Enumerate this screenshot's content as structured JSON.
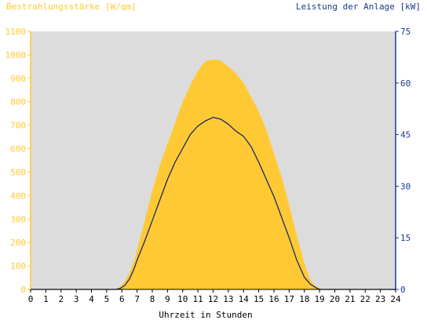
{
  "chart_data": {
    "type": "area",
    "left_axis_title": "Bestrahlungsstärke [W/qm]",
    "right_axis_title": "Leistung der Anlage [kW]",
    "xlabel": "Uhrzeit in Stunden",
    "x_ticks": [
      "0",
      "1",
      "2",
      "3",
      "4",
      "5",
      "6",
      "7",
      "8",
      "9",
      "10",
      "11",
      "12",
      "13",
      "14",
      "15",
      "16",
      "17",
      "18",
      "19",
      "20",
      "21",
      "22",
      "23",
      "24"
    ],
    "y_left_ticks": [
      "0",
      "100",
      "200",
      "300",
      "400",
      "500",
      "600",
      "700",
      "800",
      "900",
      "1000",
      "1100"
    ],
    "y_right_ticks": [
      "0",
      "15",
      "30",
      "45",
      "60",
      "75"
    ],
    "xlim": [
      0,
      24
    ],
    "ylim_left": [
      0,
      1100
    ],
    "ylim_right": [
      0,
      75
    ],
    "grid": false,
    "colors": {
      "irradiance_fill": "#ffc933",
      "power_line": "#1a2a66",
      "plot_background": "#dcdcdc",
      "left_axis": "#ffc933",
      "right_axis": "#1a3a8c"
    },
    "series": [
      {
        "axis": "left",
        "x": [
          0,
          5.5,
          5.8,
          6.0,
          6.2,
          6.5,
          6.8,
          7.0,
          7.3,
          7.5,
          8.0,
          8.5,
          9.0,
          9.5,
          10.0,
          10.5,
          11.0,
          11.3,
          11.6,
          12.0,
          12.5,
          13.0,
          13.5,
          14.0,
          14.5,
          15.0,
          15.5,
          16.0,
          16.5,
          17.0,
          17.5,
          18.0,
          18.3,
          18.6,
          19.0,
          19.3,
          24
        ],
        "y": [
          0,
          0,
          8,
          18,
          35,
          70,
          120,
          170,
          240,
          290,
          420,
          530,
          620,
          710,
          800,
          870,
          930,
          960,
          975,
          980,
          975,
          950,
          920,
          880,
          820,
          760,
          680,
          580,
          480,
          360,
          230,
          110,
          55,
          20,
          5,
          0,
          0
        ]
      },
      {
        "axis": "right",
        "x": [
          0,
          5.6,
          5.9,
          6.2,
          6.5,
          6.8,
          7.0,
          7.5,
          8.0,
          8.5,
          9.0,
          9.5,
          10.0,
          10.5,
          11.0,
          11.5,
          12.0,
          12.5,
          13.0,
          13.5,
          14.0,
          14.5,
          15.0,
          15.5,
          16.0,
          16.5,
          17.0,
          17.5,
          18.0,
          18.4,
          18.8,
          19.0,
          24
        ],
        "y": [
          0,
          0,
          0.3,
          1.2,
          3,
          6,
          8.5,
          14,
          20,
          26,
          32,
          37,
          41,
          45,
          47.5,
          49,
          50,
          49.5,
          48,
          46,
          44.5,
          41.5,
          37,
          32,
          27,
          21,
          15,
          8.5,
          3.5,
          1.5,
          0.4,
          0,
          0
        ]
      }
    ]
  }
}
